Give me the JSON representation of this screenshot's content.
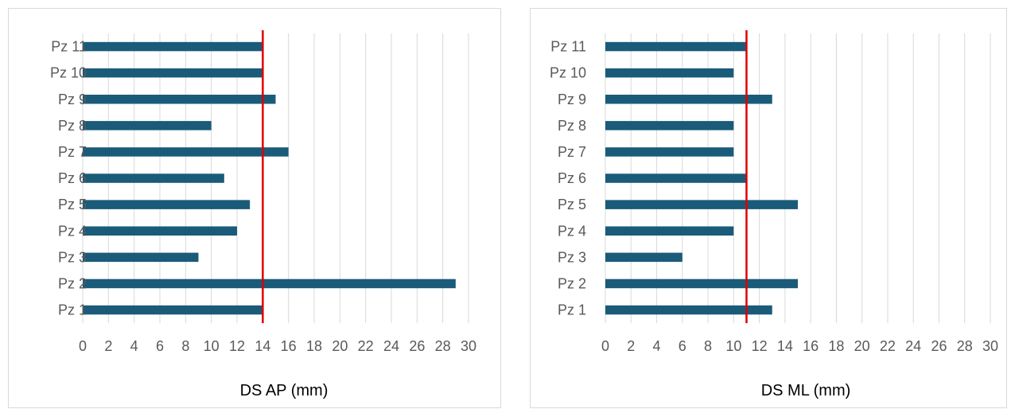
{
  "chart_data": [
    {
      "type": "bar",
      "orientation": "horizontal",
      "categories": [
        "Pz 1",
        "Pz 2",
        "Pz 3",
        "Pz 4",
        "Pz 5",
        "Pz 6",
        "Pz 7",
        "Pz 8",
        "Pz 9",
        "Pz 10",
        "Pz 11"
      ],
      "values": [
        14,
        29,
        9,
        12,
        13,
        11,
        16,
        10,
        15,
        14,
        14
      ],
      "reference_line": 14,
      "xlabel": "DS AP (mm)",
      "xlim": [
        0,
        30
      ],
      "xticks": [
        0,
        2,
        4,
        6,
        8,
        10,
        12,
        14,
        16,
        18,
        20,
        22,
        24,
        26,
        28,
        30
      ],
      "grid": "vertical",
      "legend": "none"
    },
    {
      "type": "bar",
      "orientation": "horizontal",
      "categories": [
        "Pz 1",
        "Pz 2",
        "Pz 3",
        "Pz 4",
        "Pz 5",
        "Pz 6",
        "Pz 7",
        "Pz 8",
        "Pz 9",
        "Pz 10",
        "Pz 11"
      ],
      "values": [
        13,
        15,
        6,
        10,
        15,
        11,
        10,
        10,
        13,
        10,
        11
      ],
      "reference_line": 11,
      "xlabel": "DS ML (mm)",
      "xlim": [
        0,
        30
      ],
      "xticks": [
        0,
        2,
        4,
        6,
        8,
        10,
        12,
        14,
        16,
        18,
        20,
        22,
        24,
        26,
        28,
        30
      ],
      "grid": "vertical",
      "legend": "none"
    }
  ],
  "colors": {
    "bar": "#1a5b7a",
    "reference_line": "#e00000",
    "grid": "#d9d9d9",
    "tick_text": "#595959"
  }
}
